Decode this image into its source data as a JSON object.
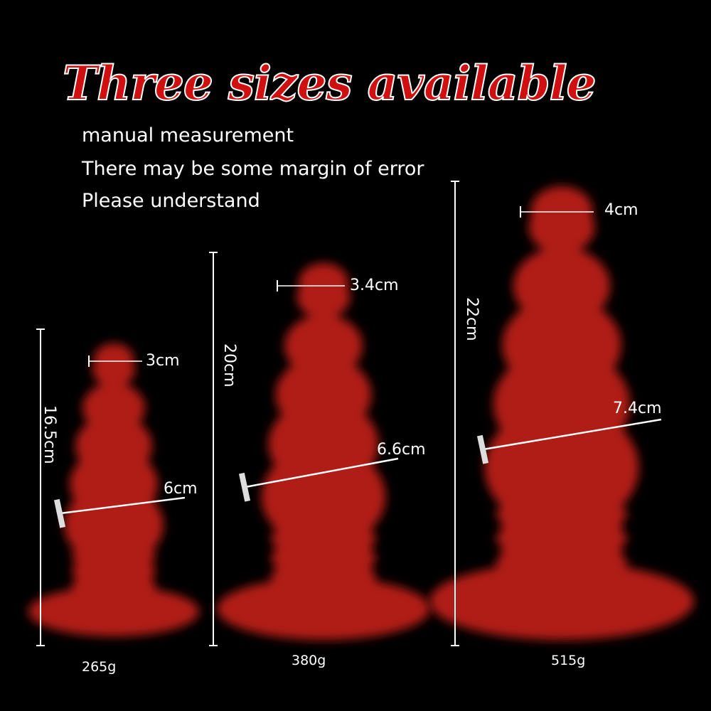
{
  "title": "Three sizes available",
  "notes": [
    "manual measurement",
    "There may be some margin of error",
    "Please understand"
  ],
  "colors": {
    "product": "#b01a14",
    "title": "#d01010",
    "background": "#000000"
  },
  "sizes": [
    {
      "height": "16.5cm",
      "top_width": "3cm",
      "max_width": "6cm",
      "weight": "265g"
    },
    {
      "height": "20cm",
      "top_width": "3.4cm",
      "max_width": "6.6cm",
      "weight": "380g"
    },
    {
      "height": "22cm",
      "top_width": "4cm",
      "max_width": "7.4cm",
      "weight": "515g"
    }
  ]
}
